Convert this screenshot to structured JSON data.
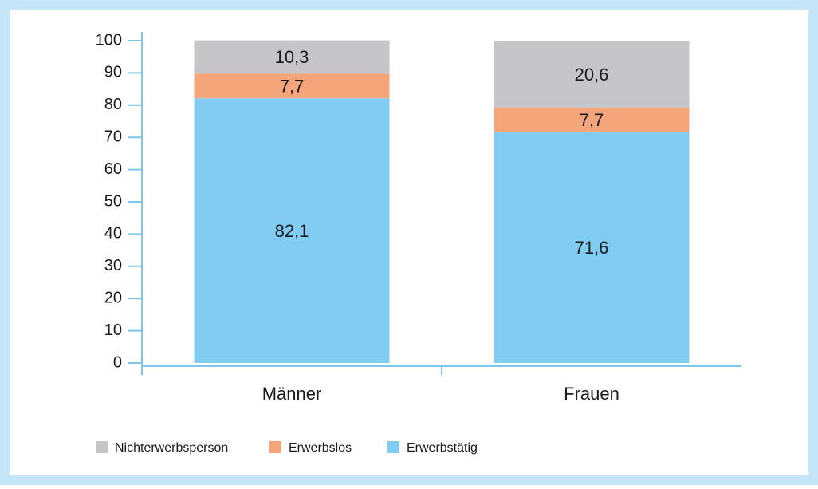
{
  "chart_data": {
    "type": "stacked_bar",
    "categories": [
      "Männer",
      "Frauen"
    ],
    "series": [
      {
        "name": "Erwerbstätig",
        "color": "#80ccf2",
        "values": [
          82.1,
          71.6
        ],
        "value_labels": [
          "82,1",
          "71,6"
        ]
      },
      {
        "name": "Erwerbslos",
        "color": "#f4a57a",
        "values": [
          7.7,
          7.7
        ],
        "value_labels": [
          "7,7",
          "7,7"
        ]
      },
      {
        "name": "Nichterwerbsperson",
        "color": "#c6c6c8",
        "values": [
          10.3,
          20.6
        ],
        "value_labels": [
          "10,3",
          "20,6"
        ]
      }
    ],
    "ylim": [
      0,
      100
    ],
    "yticks": [
      0,
      10,
      20,
      30,
      40,
      50,
      60,
      70,
      80,
      90,
      100
    ],
    "legend": "bottom-left"
  }
}
